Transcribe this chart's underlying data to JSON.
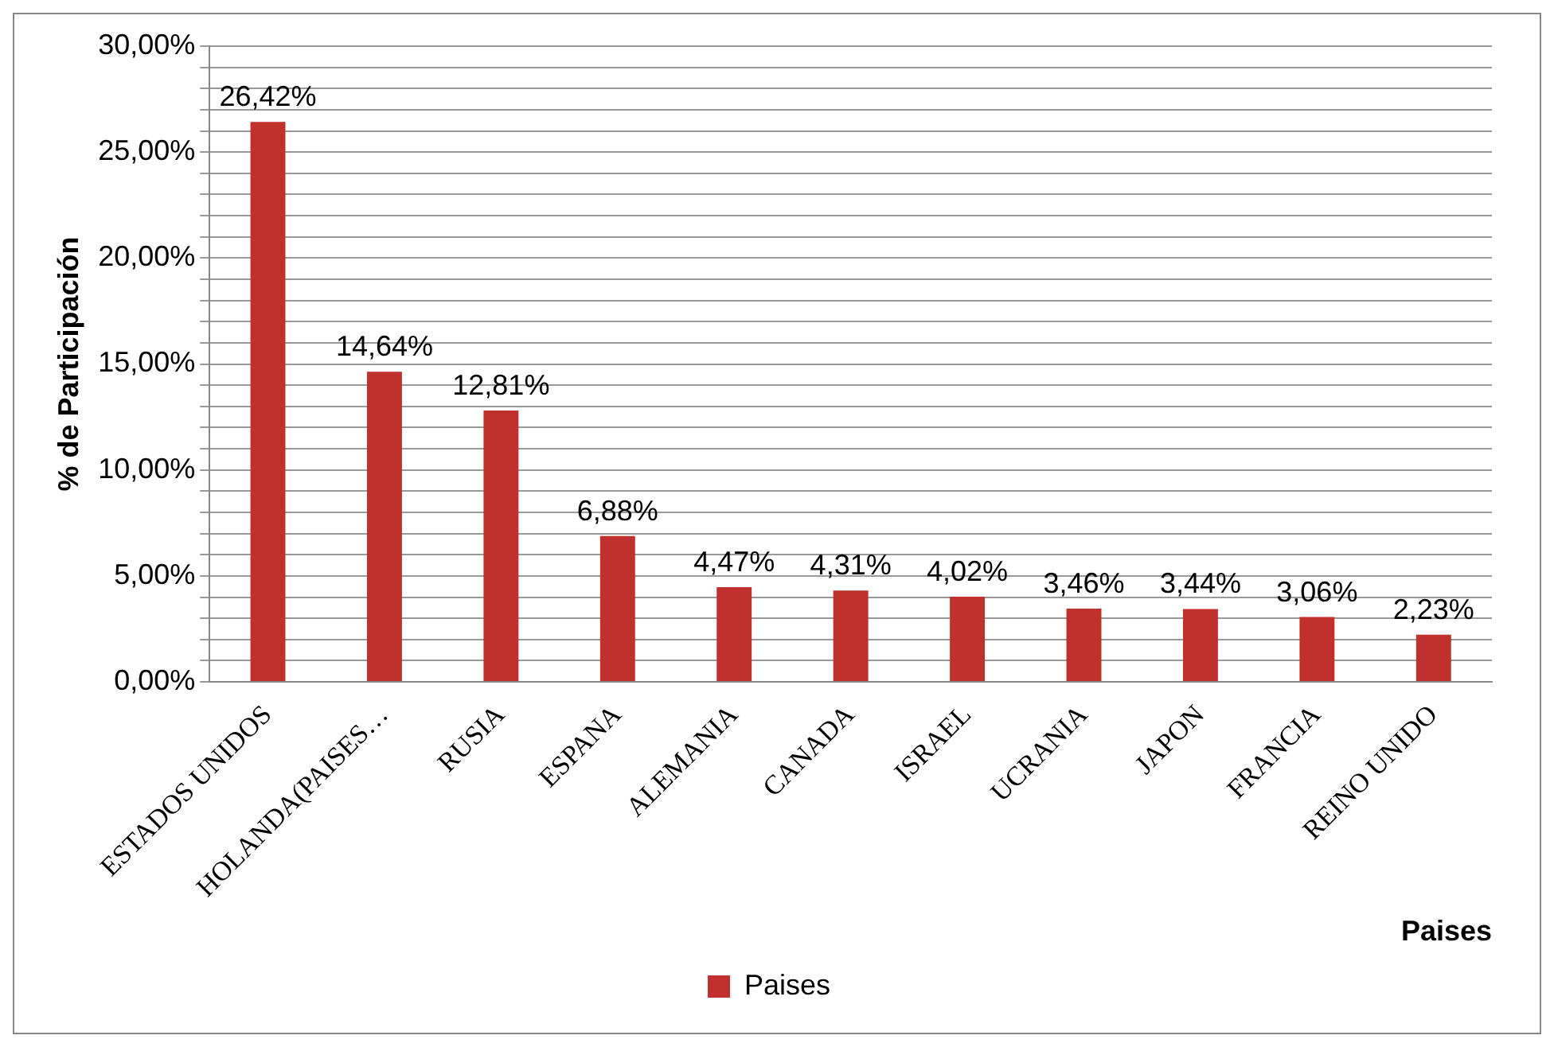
{
  "chart_data": {
    "type": "bar",
    "xlabel": "Paises",
    "ylabel": "% de Participación",
    "categories": [
      "ESTADOS UNIDOS",
      "HOLANDA(PAISES…",
      "RUSIA",
      "ESPANA",
      "ALEMANIA",
      "CANADA",
      "ISRAEL",
      "UCRANIA",
      "JAPON",
      "FRANCIA",
      "REINO UNIDO"
    ],
    "series": [
      {
        "name": "Paises",
        "color": "#c0302c",
        "values": [
          26.42,
          14.64,
          12.81,
          6.88,
          4.47,
          4.31,
          4.02,
          3.46,
          3.44,
          3.06,
          2.23
        ],
        "value_labels": [
          "26,42%",
          "14,64%",
          "12,81%",
          "6,88%",
          "4,47%",
          "4,31%",
          "4,02%",
          "3,46%",
          "3,44%",
          "3,06%",
          "2,23%"
        ]
      }
    ],
    "ylim": [
      0,
      30
    ],
    "yticks": [
      {
        "value": 0,
        "label": "0,00%"
      },
      {
        "value": 1,
        "label": null
      },
      {
        "value": 2,
        "label": null
      },
      {
        "value": 3,
        "label": null
      },
      {
        "value": 4,
        "label": null
      },
      {
        "value": 5,
        "label": "5,00%"
      },
      {
        "value": 6,
        "label": null
      },
      {
        "value": 7,
        "label": null
      },
      {
        "value": 8,
        "label": null
      },
      {
        "value": 9,
        "label": null
      },
      {
        "value": 10,
        "label": "10,00%"
      },
      {
        "value": 11,
        "label": null
      },
      {
        "value": 12,
        "label": null
      },
      {
        "value": 13,
        "label": null
      },
      {
        "value": 14,
        "label": null
      },
      {
        "value": 15,
        "label": "15,00%"
      },
      {
        "value": 16,
        "label": null
      },
      {
        "value": 17,
        "label": null
      },
      {
        "value": 18,
        "label": null
      },
      {
        "value": 19,
        "label": null
      },
      {
        "value": 20,
        "label": "20,00%"
      },
      {
        "value": 21,
        "label": null
      },
      {
        "value": 22,
        "label": null
      },
      {
        "value": 23,
        "label": null
      },
      {
        "value": 24,
        "label": null
      },
      {
        "value": 25,
        "label": "25,00%"
      },
      {
        "value": 26,
        "label": null
      },
      {
        "value": 27,
        "label": null
      },
      {
        "value": 28,
        "label": null
      },
      {
        "value": 29,
        "label": null
      },
      {
        "value": 30,
        "label": "30,00%"
      }
    ],
    "grid": "y",
    "legend": "bottom"
  }
}
